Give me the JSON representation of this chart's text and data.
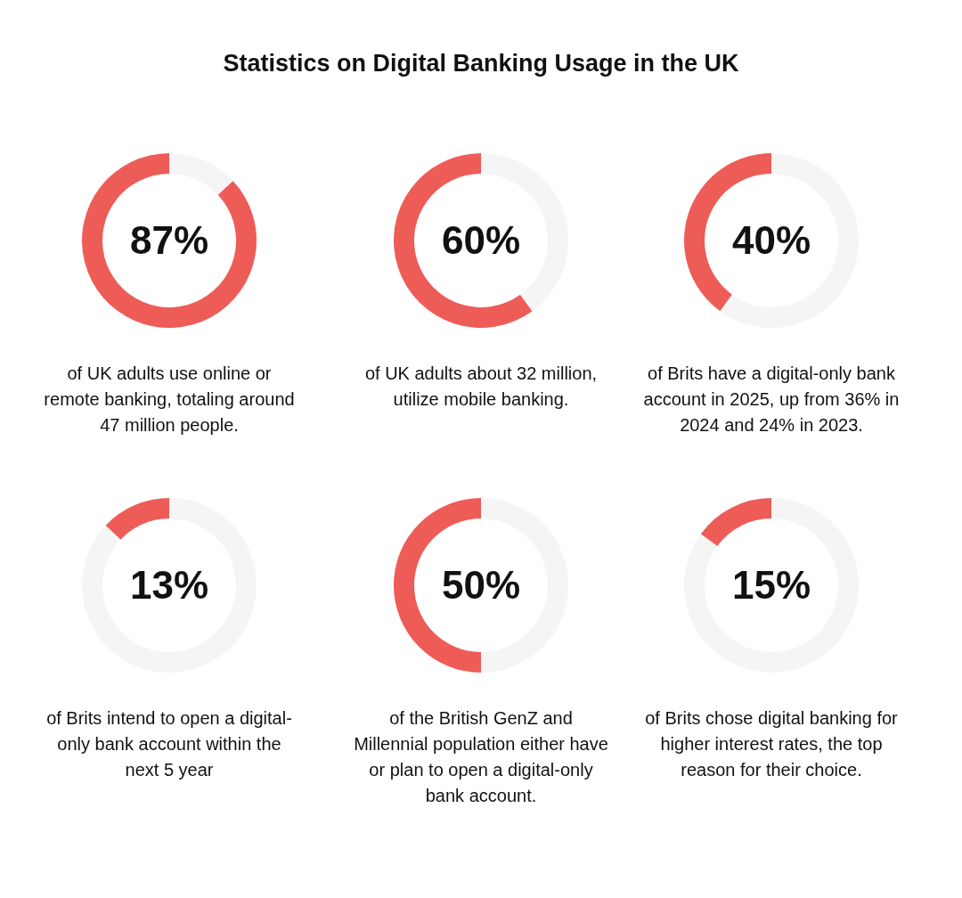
{
  "chart_data": [
    {
      "type": "donut",
      "categories": [
        null,
        null
      ],
      "values": [
        87,
        13
      ],
      "colors": [
        "#ee5c58",
        "#f5f5f5"
      ],
      "annotations": [
        "87%",
        "of UK adults use online or remote banking, totaling around 47 million people."
      ]
    },
    {
      "type": "donut",
      "title": "Statistics on Digital Banking Usage in the UK",
      "categories": [
        null,
        null
      ],
      "values": [
        60,
        40
      ],
      "colors": [
        "#ee5c58",
        "#f5f5f5"
      ],
      "annotations": [
        "60%",
        "of UK adults about 32 million, utilize mobile banking."
      ]
    },
    {
      "type": "donut",
      "categories": [
        null,
        null
      ],
      "values": [
        40,
        60
      ],
      "colors": [
        "#ee5c58",
        "#f5f5f5"
      ],
      "annotations": [
        "40%",
        "of Brits have a digital-only bank account in 2025, up from 36% in 2024 and 24% in 2023."
      ]
    },
    {
      "type": "donut",
      "categories": [
        null,
        null
      ],
      "values": [
        13,
        87
      ],
      "colors": [
        "#ee5c58",
        "#f5f5f5"
      ],
      "annotations": [
        "13%",
        "of Brits intend to open a digital-only bank account within the next 5 year"
      ]
    },
    {
      "type": "donut",
      "categories": [
        null,
        null
      ],
      "values": [
        50,
        50
      ],
      "colors": [
        "#ee5c58",
        "#f5f5f5"
      ],
      "annotations": [
        "50%",
        "of the British GenZ and Millennial population either have or plan to open a digital-only bank account."
      ]
    },
    {
      "type": "donut",
      "categories": [
        null,
        null
      ],
      "values": [
        15,
        85
      ],
      "colors": [
        "#ee5c58",
        "#f5f5f5"
      ],
      "annotations": [
        "15%",
        "of Brits chose digital banking for higher interest rates, the top reason for their choice."
      ]
    }
  ]
}
